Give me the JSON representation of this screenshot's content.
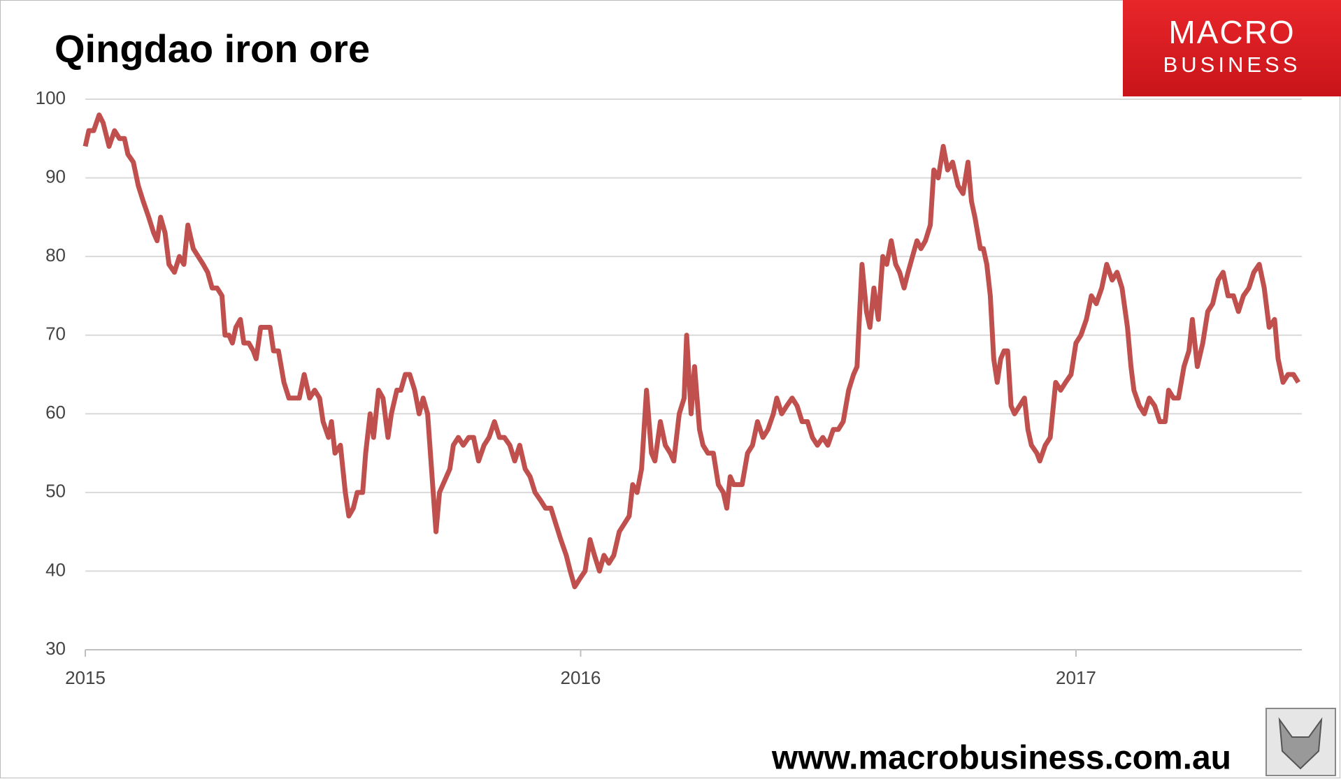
{
  "chart_data": {
    "type": "line",
    "title": "Qingdao iron ore",
    "x": [
      2015.0,
      2015.007,
      2015.017,
      2015.028,
      2015.036,
      2015.048,
      2015.059,
      2015.069,
      2015.079,
      2015.086,
      2015.097,
      2015.107,
      2015.117,
      2015.128,
      2015.138,
      2015.145,
      2015.152,
      2015.161,
      2015.169,
      2015.18,
      2015.19,
      2015.199,
      2015.207,
      2015.218,
      2015.228,
      2015.238,
      2015.247,
      2015.256,
      2015.266,
      2015.276,
      2015.282,
      2015.29,
      2015.297,
      2015.304,
      2015.313,
      2015.32,
      2015.33,
      2015.339,
      2015.345,
      2015.354,
      2015.363,
      2015.373,
      2015.38,
      2015.39,
      2015.401,
      2015.411,
      2015.421,
      2015.432,
      2015.442,
      2015.453,
      2015.463,
      2015.473,
      2015.48,
      2015.491,
      2015.497,
      2015.504,
      2015.515,
      2015.525,
      2015.532,
      2015.541,
      2015.549,
      2015.56,
      2015.566,
      2015.575,
      2015.582,
      2015.592,
      2015.601,
      2015.611,
      2015.618,
      2015.629,
      2015.637,
      2015.646,
      2015.655,
      2015.665,
      2015.674,
      2015.682,
      2015.691,
      2015.699,
      2015.708,
      2015.715,
      2015.722,
      2015.729,
      2015.736,
      2015.743,
      2015.753,
      2015.763,
      2015.774,
      2015.784,
      2015.794,
      2015.805,
      2015.815,
      2015.826,
      2015.836,
      2015.846,
      2015.857,
      2015.867,
      2015.877,
      2015.888,
      2015.898,
      2015.908,
      2015.919,
      2015.929,
      2015.94,
      2015.95,
      2015.96,
      2015.971,
      2015.979,
      2015.988,
      2015.998,
      2016.009,
      2016.019,
      2016.028,
      2016.038,
      2016.047,
      2016.057,
      2016.067,
      2016.078,
      2016.088,
      2016.098,
      2016.105,
      2016.114,
      2016.123,
      2016.133,
      2016.143,
      2016.15,
      2016.161,
      2016.171,
      2016.181,
      2016.188,
      2016.199,
      2016.209,
      2016.214,
      2016.223,
      2016.23,
      2016.24,
      2016.247,
      2016.257,
      2016.268,
      2016.278,
      2016.288,
      2016.295,
      2016.302,
      2016.309,
      2016.32,
      2016.326,
      2016.337,
      2016.347,
      2016.357,
      2016.368,
      2016.378,
      2016.389,
      2016.396,
      2016.406,
      2016.416,
      2016.427,
      2016.437,
      2016.447,
      2016.458,
      2016.468,
      2016.478,
      2016.489,
      2016.499,
      2016.51,
      2016.52,
      2016.53,
      2016.541,
      2016.551,
      2016.558,
      2016.568,
      2016.577,
      2016.584,
      2016.592,
      2016.601,
      2016.61,
      2016.618,
      2016.627,
      2016.636,
      2016.644,
      2016.653,
      2016.661,
      2016.67,
      2016.679,
      2016.687,
      2016.696,
      2016.706,
      2016.713,
      2016.722,
      2016.732,
      2016.741,
      2016.751,
      2016.762,
      2016.772,
      2016.782,
      2016.789,
      2016.796,
      2016.807,
      2016.813,
      2016.82,
      2016.827,
      2016.834,
      2016.841,
      2016.848,
      2016.855,
      2016.862,
      2016.869,
      2016.876,
      2016.886,
      2016.896,
      2016.903,
      2016.91,
      2016.921,
      2016.927,
      2016.938,
      2016.948,
      2016.959,
      2016.969,
      2016.979,
      2016.99,
      2017.0,
      2017.01,
      2017.021,
      2017.031,
      2017.041,
      2017.052,
      2017.062,
      2017.073,
      2017.083,
      2017.093,
      2017.104,
      2017.111,
      2017.117,
      2017.128,
      2017.138,
      2017.148,
      2017.159,
      2017.169,
      2017.18,
      2017.187,
      2017.197,
      2017.207,
      2017.218,
      2017.228,
      2017.235,
      2017.245,
      2017.256,
      2017.266,
      2017.276,
      2017.287,
      2017.297,
      2017.307,
      2017.318,
      2017.328,
      2017.338,
      2017.349,
      2017.359,
      2017.37,
      2017.38,
      2017.39,
      2017.401,
      2017.408,
      2017.418,
      2017.428,
      2017.439,
      2017.449
    ],
    "values": [
      94,
      96,
      96,
      98,
      97,
      94,
      96,
      95,
      95,
      93,
      92,
      89,
      87,
      85,
      83,
      82,
      85,
      83,
      79,
      78,
      80,
      79,
      84,
      81,
      80,
      79,
      78,
      76,
      76,
      75,
      70,
      70,
      69,
      71,
      72,
      69,
      69,
      68,
      67,
      71,
      71,
      71,
      68,
      68,
      64,
      62,
      62,
      62,
      65,
      62,
      63,
      62,
      59,
      57,
      59,
      55,
      56,
      50,
      47,
      48,
      50,
      50,
      55,
      60,
      57,
      63,
      62,
      57,
      60,
      63,
      63,
      65,
      65,
      63,
      60,
      62,
      60,
      53,
      45,
      50,
      51,
      52,
      53,
      56,
      57,
      56,
      57,
      57,
      54,
      56,
      57,
      59,
      57,
      57,
      56,
      54,
      56,
      53,
      52,
      50,
      49,
      48,
      48,
      46,
      44,
      42,
      40,
      38,
      39,
      40,
      44,
      42,
      40,
      42,
      41,
      42,
      45,
      46,
      47,
      51,
      50,
      53,
      63,
      55,
      54,
      59,
      56,
      55,
      54,
      60,
      62,
      70,
      60,
      66,
      58,
      56,
      55,
      55,
      51,
      50,
      48,
      52,
      51,
      51,
      51,
      55,
      56,
      59,
      57,
      58,
      60,
      62,
      60,
      61,
      62,
      61,
      59,
      59,
      57,
      56,
      57,
      56,
      58,
      58,
      59,
      63,
      65,
      66,
      79,
      73,
      71,
      76,
      72,
      80,
      79,
      82,
      79,
      78,
      76,
      78,
      80,
      82,
      81,
      82,
      84,
      91,
      90,
      94,
      91,
      92,
      89,
      88,
      92,
      87,
      85,
      81,
      81,
      79,
      75,
      67,
      64,
      67,
      68,
      68,
      61,
      60,
      61,
      62,
      58,
      56,
      55,
      54,
      56,
      57,
      64,
      63,
      64,
      65,
      69,
      70,
      72,
      75,
      74,
      76,
      79,
      77,
      78,
      76,
      71,
      66,
      63,
      61,
      60,
      62,
      61,
      59,
      59,
      63,
      62,
      62,
      66,
      68,
      72,
      66,
      69,
      73,
      74,
      77,
      78,
      75,
      75,
      73,
      75,
      76,
      78,
      79,
      76,
      71,
      72,
      67,
      64,
      65,
      65,
      64
    ],
    "color": "#c0504d",
    "xlim": [
      2015,
      2017.456
    ],
    "xticks": [
      2015,
      2016,
      2017
    ],
    "ylim": [
      30,
      100
    ],
    "yticks": [
      30,
      40,
      50,
      60,
      70,
      80,
      90,
      100
    ],
    "grid": true
  },
  "brand": {
    "line1": "MACRO",
    "line2": "BUSINESS"
  },
  "footer": "www.macrobusiness.com.au"
}
